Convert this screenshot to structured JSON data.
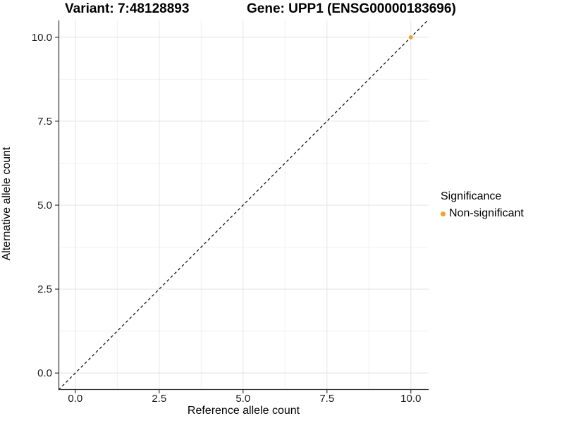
{
  "titles": {
    "variant": "Variant: 7:48128893",
    "gene": "Gene: UPP1 (ENSG00000183696)"
  },
  "legend": {
    "title": "Significance",
    "items": [
      {
        "label": "Non-significant",
        "color": "#F8A029"
      }
    ]
  },
  "colors": {
    "background": "#ffffff",
    "grid_major": "#e3e3e3",
    "grid_minor": "#f0f0f0",
    "axis_line": "#333333",
    "tick_mark": "#333333",
    "reference_line": "#000000",
    "point_nonsignificant": "#F8A029"
  },
  "chart_data": {
    "type": "scatter",
    "title": "Variant: 7:48128893   Gene: UPP1 (ENSG00000183696)",
    "xlabel": "Reference allele count",
    "ylabel": "Alternative allele count",
    "xlim": [
      -0.5,
      10.53
    ],
    "ylim": [
      -0.5,
      10.5
    ],
    "x_ticks": [
      0,
      2.5,
      5,
      7.5,
      10
    ],
    "y_ticks": [
      0,
      2.5,
      5,
      7.5,
      10
    ],
    "x_minor_ticks": [
      1.25,
      3.75,
      6.25,
      8.75
    ],
    "y_minor_ticks": [
      1.25,
      3.75,
      6.25,
      8.75
    ],
    "tick_decimals": 1,
    "grid": true,
    "legend_position": "right",
    "series": [
      {
        "name": "Non-significant",
        "color": "#F8A029",
        "points": [
          {
            "x": 10,
            "y": 10
          }
        ]
      }
    ],
    "reference_line": {
      "type": "identity",
      "slope": 1,
      "intercept": 0,
      "style": "dashed",
      "color": "#000000"
    }
  }
}
